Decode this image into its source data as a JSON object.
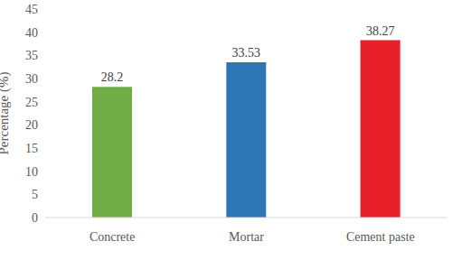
{
  "chart_data": {
    "type": "bar",
    "categories": [
      "Concrete",
      "Mortar",
      "Cement paste"
    ],
    "values": [
      28.2,
      33.53,
      38.27
    ],
    "colors": [
      "#70ad47",
      "#2e75b6",
      "#e8202a"
    ],
    "ylim": [
      0,
      45
    ],
    "yticks": [
      0,
      5,
      10,
      15,
      20,
      25,
      30,
      35,
      40,
      45
    ],
    "y_label": "Percentage (%)",
    "data_labels": true,
    "grid": false
  }
}
